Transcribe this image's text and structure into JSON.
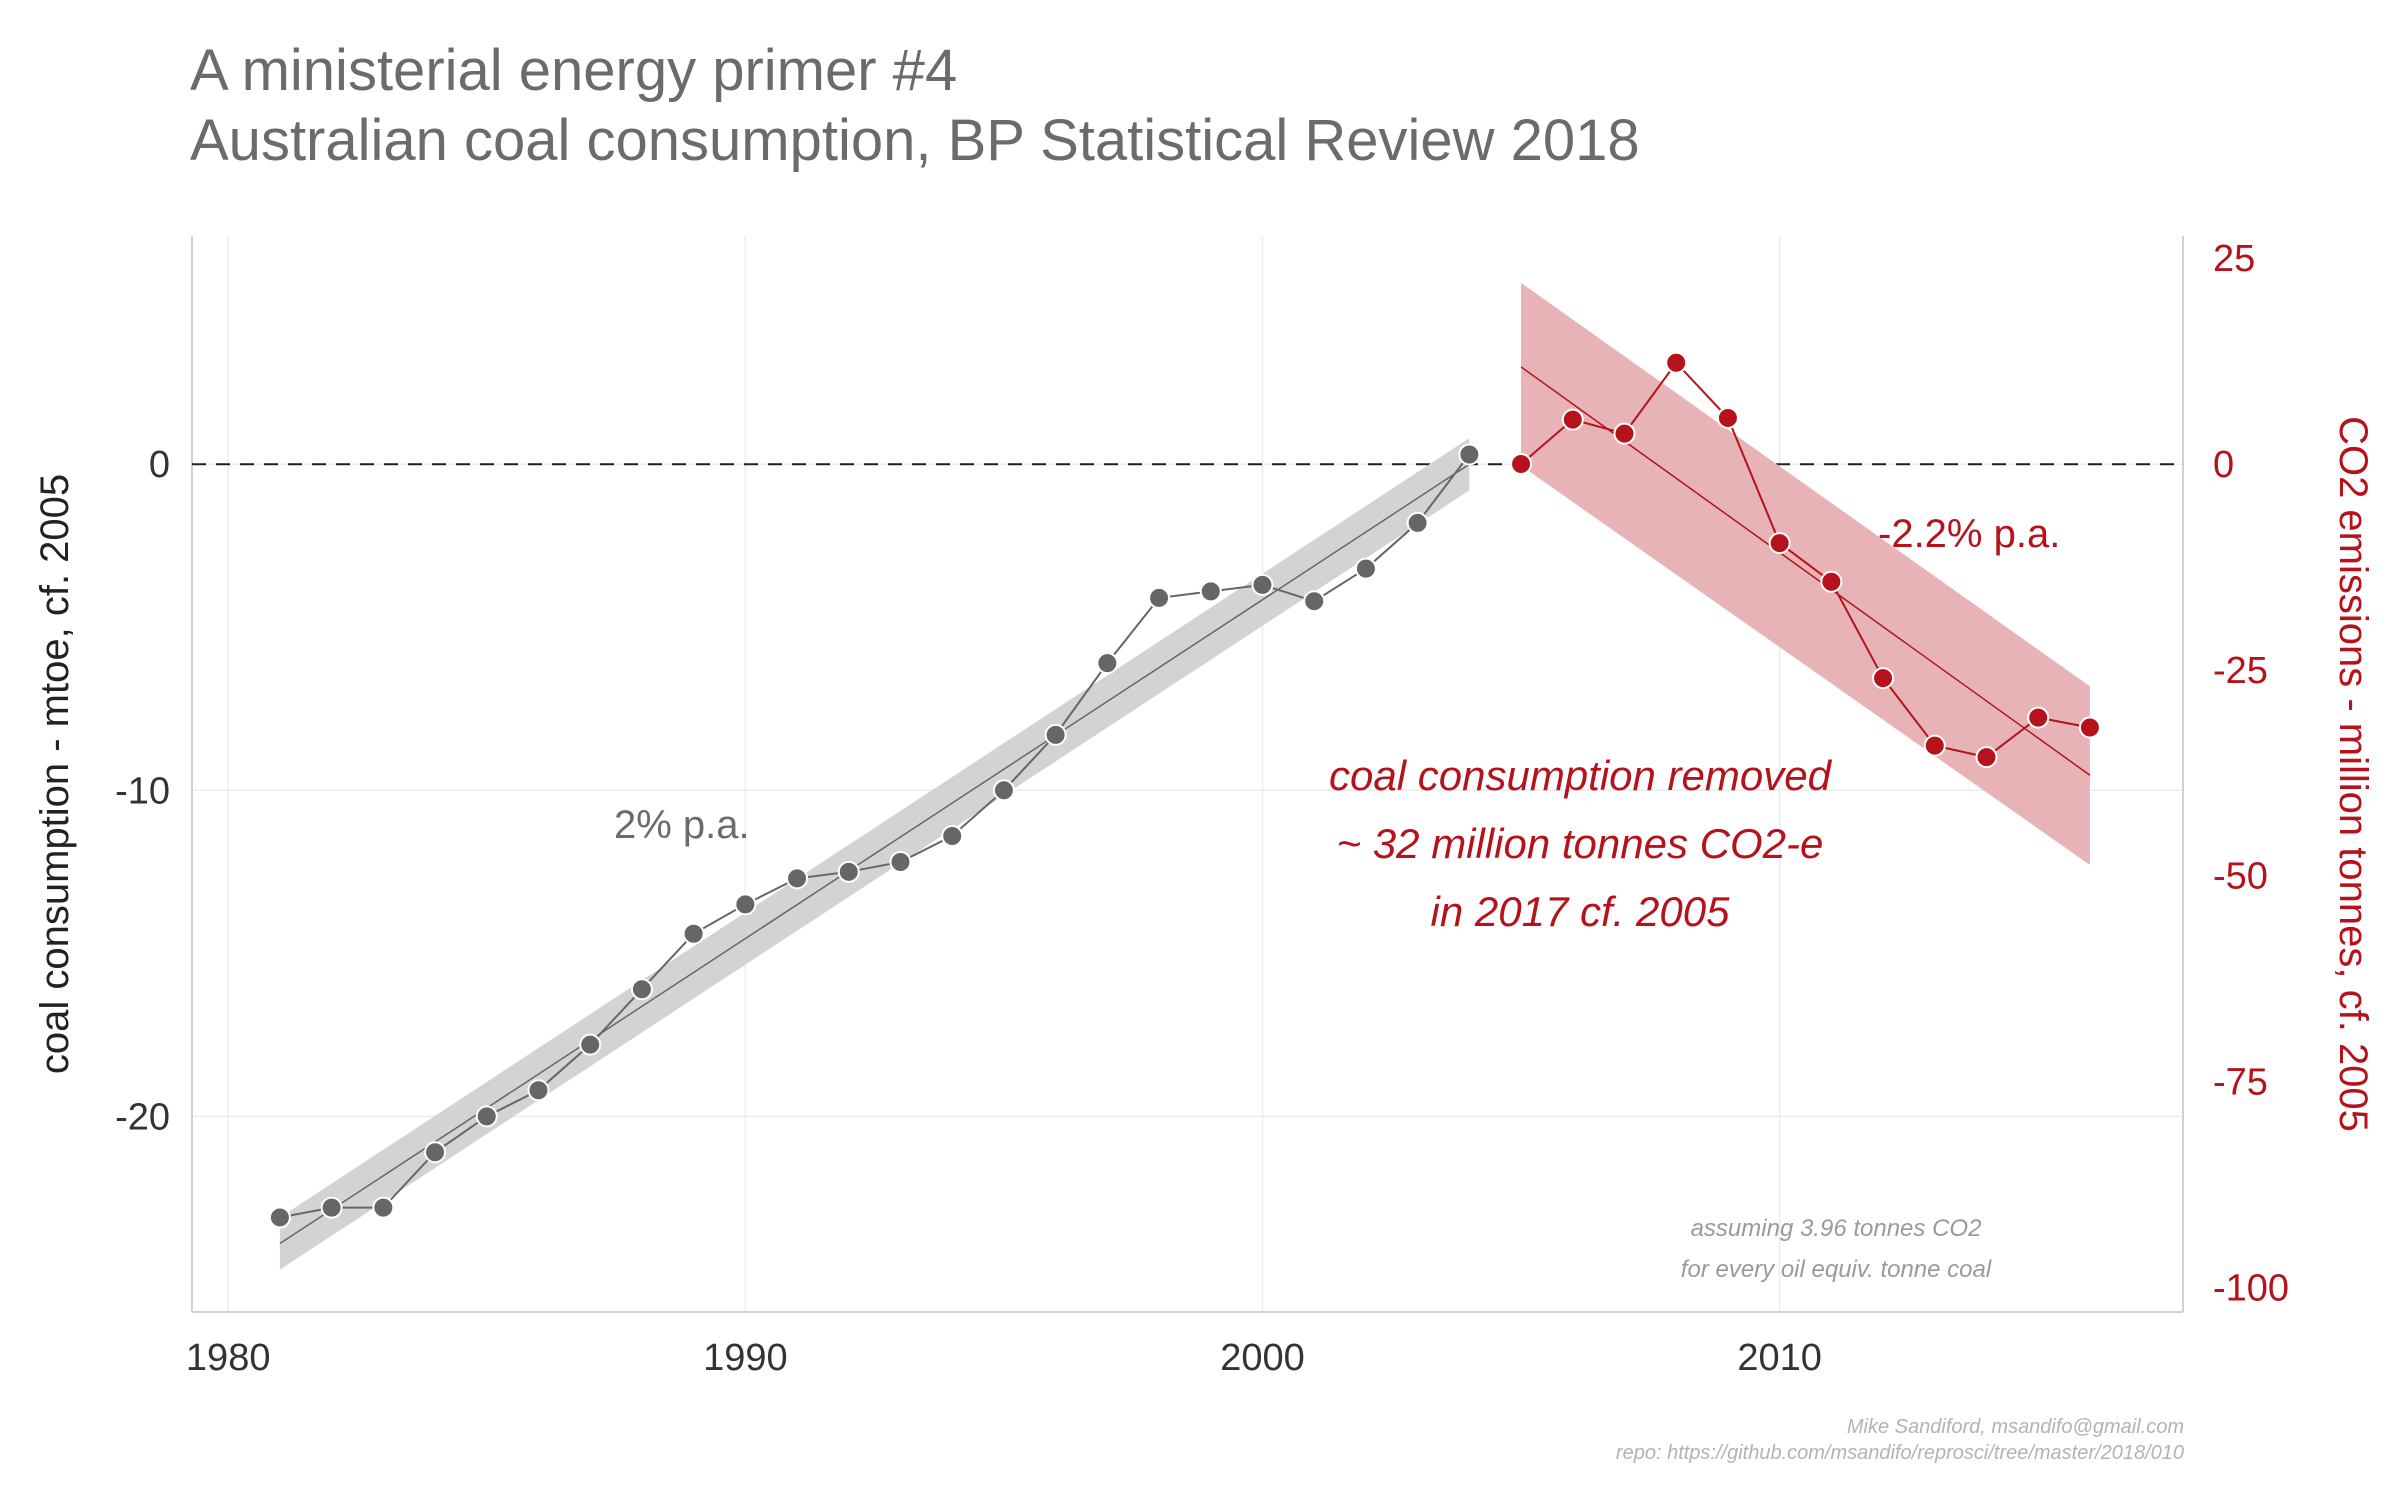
{
  "title_line1": "A ministerial energy primer #4",
  "title_line2": "Australian coal consumption, BP Statistical Review 2018",
  "credit_line1": "Mike Sandiford, msandifo@gmail.com",
  "credit_line2": "repo: https://github.com/msandifo/reprosci/tree/master/2018/010",
  "chart_data": {
    "type": "line",
    "x_axis": {
      "ticks": [
        1980,
        1990,
        2000,
        2010
      ],
      "range": [
        1979.3,
        2017.8
      ],
      "grid": true
    },
    "y_left": {
      "label": "coal consumption - mtoe, cf. 2005",
      "ticks": [
        0,
        -10,
        -20
      ],
      "range": [
        -26,
        7
      ],
      "color": "#222222"
    },
    "y_right": {
      "label": "CO2 emissions - million tonnes, cf. 2005",
      "ticks": [
        25,
        0,
        -25,
        -50,
        -75,
        -100
      ],
      "range": [
        -103,
        27.7
      ],
      "color": "#b5121b"
    },
    "reference_line": {
      "y": 0,
      "style": "dashed"
    },
    "series": [
      {
        "axis": "left",
        "color": "#666666",
        "x": [
          1981,
          1982,
          1983,
          1984,
          1985,
          1986,
          1987,
          1988,
          1989,
          1990,
          1991,
          1992,
          1993,
          1994,
          1995,
          1996,
          1997,
          1998,
          1999,
          2000,
          2001,
          2002,
          2003,
          2004
        ],
        "y": [
          -23.1,
          -22.8,
          -22.8,
          -21.1,
          -20.0,
          -19.2,
          -17.8,
          -16.1,
          -14.4,
          -13.5,
          -12.7,
          -12.5,
          -12.2,
          -11.4,
          -10.0,
          -8.3,
          -6.1,
          -4.1,
          -3.9,
          -3.7,
          -4.2,
          -3.2,
          -1.8,
          0.3
        ],
        "trend": {
          "x": [
            1981,
            2004
          ],
          "y": [
            -23.9,
            0.0
          ],
          "band_half_width": 0.8
        },
        "annotation": "2% p.a."
      },
      {
        "axis": "right",
        "color": "#b5121b",
        "x": [
          2005,
          2006,
          2007,
          2008,
          2009,
          2010,
          2011,
          2012,
          2013,
          2014,
          2015,
          2016
        ],
        "y": [
          0,
          5.4,
          3.7,
          12.3,
          5.6,
          -9.6,
          -14.3,
          -26.0,
          -34.2,
          -35.6,
          -30.8,
          -32.0
        ],
        "trend": {
          "x": [
            2005,
            2016
          ],
          "y": [
            11.8,
            -37.8
          ],
          "band_lower_at": [
            -0.2,
            -48.7
          ],
          "band_upper_at": [
            22.0,
            -27.0
          ]
        },
        "annotation": "-2.2% p.a."
      }
    ],
    "annotations": [
      "coal consumption removed",
      "~ 32 million tonnes CO2-e",
      "in 2017  cf. 2005"
    ],
    "notes": [
      "assuming 3.96 tonnes CO2",
      "for every oil equiv. tonne coal"
    ]
  }
}
